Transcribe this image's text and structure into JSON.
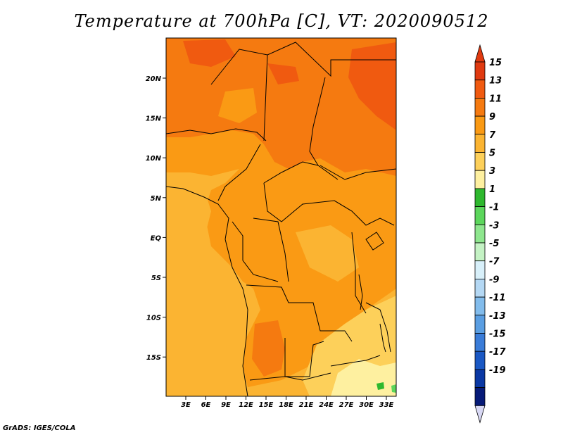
{
  "title": "Temperature at 700hPa [C], VT: 2020090512",
  "credit": "GrADS: IGES/COLA",
  "map": {
    "lon_labels": [
      "3E",
      "6E",
      "9E",
      "12E",
      "15E",
      "18E",
      "21E",
      "24E",
      "27E",
      "30E",
      "33E"
    ],
    "lat_labels": [
      "20N",
      "15N",
      "10N",
      "5N",
      "EQ",
      "5S",
      "10S",
      "15S"
    ],
    "border_color": "#000000"
  },
  "colorbar": {
    "labels": [
      "15",
      "13",
      "11",
      "9",
      "7",
      "5",
      "3",
      "1",
      "-1",
      "-3",
      "-5",
      "-7",
      "-9",
      "-11",
      "-13",
      "-15",
      "-17",
      "-19"
    ],
    "colors": [
      "#e03a10",
      "#f05a10",
      "#f57a10",
      "#fa9a14",
      "#fbb432",
      "#fdd05a",
      "#fef0a0",
      "#2eb82e",
      "#5cd65c",
      "#8ee68e",
      "#c4f2c4",
      "#d8f0fa",
      "#b4d8f4",
      "#82bcec",
      "#5a9ee2",
      "#3a7cd8",
      "#1a58c4",
      "#0a38a4",
      "#061a78"
    ],
    "over_color": "#e03a10",
    "under_color": "#d8d8f4"
  }
}
